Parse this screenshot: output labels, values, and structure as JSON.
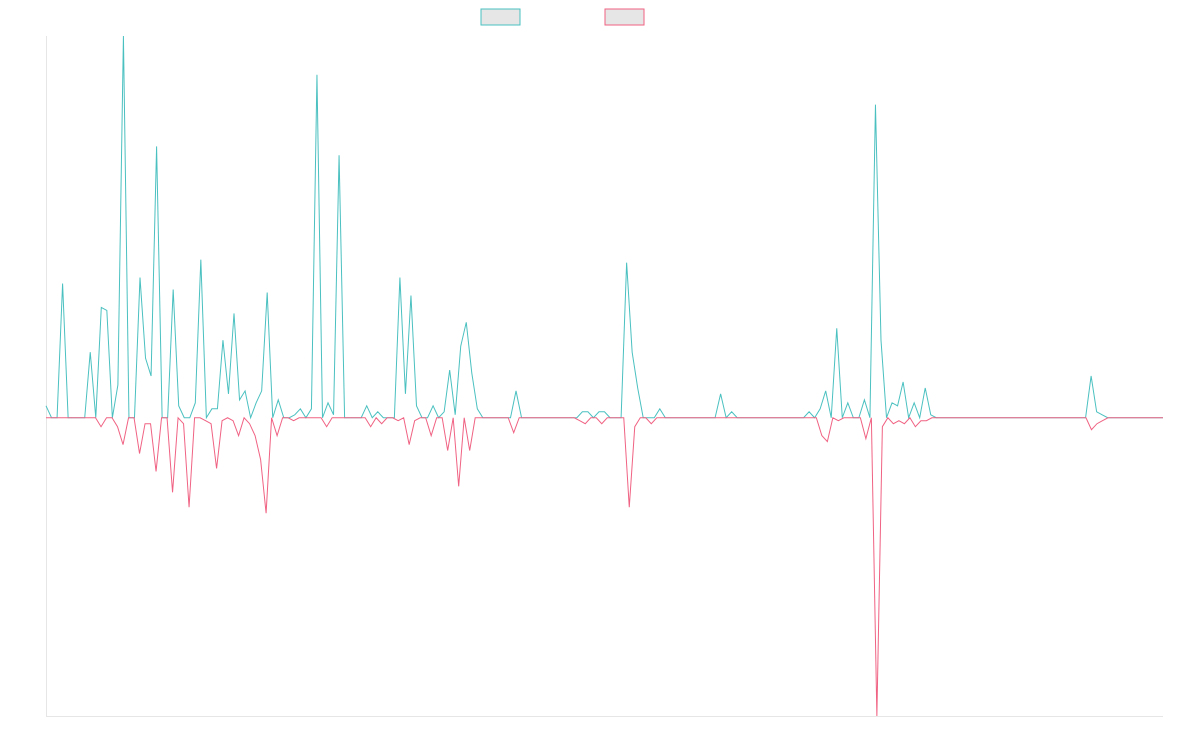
{
  "chart_data": {
    "type": "line",
    "title": "",
    "xlabel": "",
    "ylabel": "",
    "grid": false,
    "legend": "top-center",
    "ylim": [
      -100,
      128
    ],
    "series": [
      {
        "name": "",
        "color": "#4bc0c0",
        "values": [
          4,
          0,
          0,
          45,
          0,
          0,
          0,
          0,
          22,
          0,
          37,
          36,
          0,
          11,
          128,
          0,
          0,
          47,
          20,
          14,
          91,
          0,
          0,
          43,
          4,
          0,
          0,
          5,
          53,
          0,
          3,
          3,
          26,
          8,
          35,
          6,
          9,
          0,
          5,
          9,
          42,
          0,
          6,
          0,
          0,
          1,
          3,
          0,
          3,
          115,
          0,
          5,
          1,
          88,
          0,
          0,
          0,
          0,
          4,
          0,
          2,
          0,
          0,
          0,
          47,
          8,
          41,
          4,
          0,
          0,
          4,
          0,
          2,
          16,
          1,
          24,
          32,
          15,
          3,
          0,
          0,
          0,
          0,
          0,
          0,
          9,
          0,
          0,
          0,
          0,
          0,
          0,
          0,
          0,
          0,
          0,
          0,
          2,
          2,
          0,
          2,
          2,
          0,
          0,
          0,
          52,
          22,
          10,
          0,
          0,
          0,
          3,
          0,
          0,
          0,
          0,
          0,
          0,
          0,
          0,
          0,
          0,
          8,
          0,
          2,
          0,
          0,
          0,
          0,
          0,
          0,
          0,
          0,
          0,
          0,
          0,
          0,
          0,
          2,
          0,
          3,
          9,
          0,
          30,
          0,
          5,
          0,
          0,
          6,
          0,
          105,
          26,
          0,
          5,
          4,
          12,
          0,
          5,
          0,
          10,
          1,
          0,
          0,
          0,
          0,
          0,
          0,
          0,
          0,
          0,
          0,
          0,
          0,
          0,
          0,
          0,
          0,
          0,
          0,
          0,
          0,
          0,
          0,
          0,
          0,
          0,
          0,
          0,
          0,
          14,
          2,
          1,
          0,
          0,
          0,
          0,
          0,
          0,
          0,
          0,
          0,
          0,
          0
        ]
      },
      {
        "name": "",
        "color": "#f06283",
        "values": [
          0,
          0,
          0,
          0,
          0,
          0,
          0,
          0,
          0,
          0,
          -3,
          0,
          0,
          -3,
          -9,
          0,
          0,
          -12,
          -2,
          -2,
          -18,
          0,
          0,
          -25,
          0,
          -2,
          -30,
          0,
          0,
          -1,
          -2,
          -17,
          -1,
          0,
          -1,
          -6,
          0,
          -2,
          -6,
          -14,
          -32,
          0,
          -6,
          0,
          0,
          -1,
          0,
          0,
          0,
          0,
          0,
          -3,
          0,
          0,
          0,
          0,
          0,
          0,
          0,
          -3,
          0,
          -2,
          0,
          0,
          -1,
          0,
          -9,
          -1,
          0,
          0,
          -6,
          0,
          0,
          -11,
          0,
          -23,
          0,
          -11,
          0,
          0,
          0,
          0,
          0,
          0,
          0,
          -5,
          0,
          0,
          0,
          0,
          0,
          0,
          0,
          0,
          0,
          0,
          0,
          -1,
          -2,
          0,
          0,
          -2,
          0,
          0,
          0,
          0,
          -30,
          -3,
          0,
          0,
          -2,
          0,
          0,
          0,
          0,
          0,
          0,
          0,
          0,
          0,
          0,
          0,
          0,
          0,
          0,
          0,
          0,
          0,
          0,
          0,
          0,
          0,
          0,
          0,
          0,
          0,
          0,
          0,
          0,
          0,
          0,
          -6,
          -8,
          0,
          -1,
          0,
          0,
          0,
          0,
          -7,
          0,
          -100,
          -3,
          0,
          -2,
          -1,
          -2,
          0,
          -3,
          -1,
          -1,
          0,
          0,
          0,
          0,
          0,
          0,
          0,
          0,
          0,
          0,
          0,
          0,
          0,
          0,
          0,
          0,
          0,
          0,
          0,
          0,
          0,
          0,
          0,
          0,
          0,
          0,
          0,
          0,
          0,
          -4,
          -2,
          -1,
          0,
          0,
          0,
          0,
          0,
          0,
          0,
          0,
          0,
          0,
          0
        ]
      }
    ]
  }
}
